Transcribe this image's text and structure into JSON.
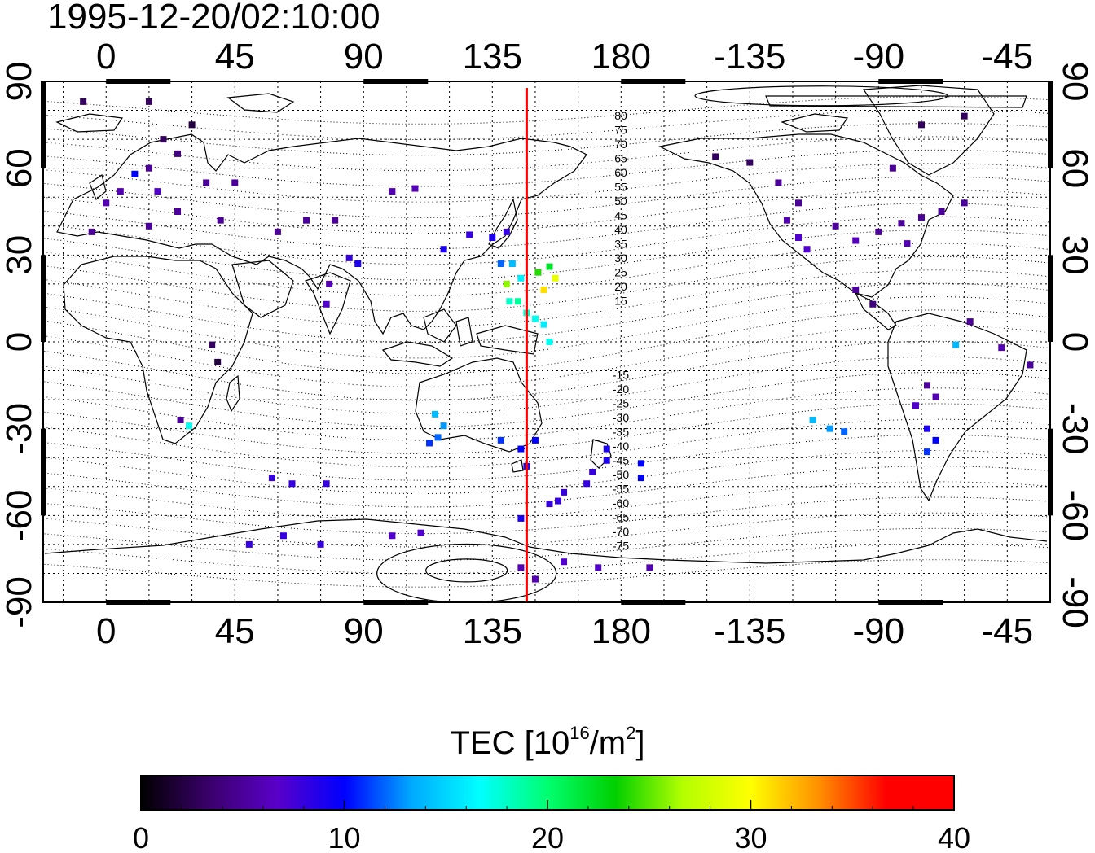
{
  "title": "1995-12-20/02:10:00",
  "map": {
    "lon_ticks_top": [
      "0",
      "45",
      "90",
      "135",
      "180",
      "-135",
      "-90",
      "-45"
    ],
    "lon_ticks_bottom": [
      "0",
      "45",
      "90",
      "135",
      "180",
      "-135",
      "-90",
      "-45"
    ],
    "lat_ticks_left": [
      "90",
      "60",
      "30",
      "0",
      "-30",
      "-60",
      "-90"
    ],
    "lat_ticks_right": [
      "90",
      "60",
      "30",
      "0",
      "-30",
      "-60",
      "-90"
    ],
    "lon_tick_values": [
      0,
      45,
      90,
      135,
      180,
      225,
      270,
      315
    ],
    "lat_tick_values": [
      90,
      60,
      30,
      0,
      -30,
      -60,
      -90
    ],
    "lon_range": [
      -22,
      330
    ],
    "lat_range": [
      -90,
      90
    ],
    "meridian_line_lon": 147,
    "meridian_color": "#ff0000",
    "contour_labels": [
      "80",
      "75",
      "70",
      "65",
      "60",
      "55",
      "50",
      "45",
      "40",
      "35",
      "30",
      "25",
      "20",
      "15",
      "-15",
      "-20",
      "-25",
      "-30",
      "-35",
      "-40",
      "-45",
      "-50",
      "-55",
      "-60",
      "-65",
      "-70",
      "-75"
    ],
    "tec_points": [
      {
        "lon": -8,
        "lat": 83,
        "tec": 3
      },
      {
        "lon": 15,
        "lat": 83,
        "tec": 3
      },
      {
        "lon": 30,
        "lat": 75,
        "tec": 2
      },
      {
        "lon": 20,
        "lat": 70,
        "tec": 3
      },
      {
        "lon": 25,
        "lat": 65,
        "tec": 4
      },
      {
        "lon": 15,
        "lat": 60,
        "tec": 5
      },
      {
        "lon": 10,
        "lat": 58,
        "tec": 10
      },
      {
        "lon": 5,
        "lat": 52,
        "tec": 6
      },
      {
        "lon": 18,
        "lat": 52,
        "tec": 7
      },
      {
        "lon": 0,
        "lat": 48,
        "tec": 6
      },
      {
        "lon": 25,
        "lat": 45,
        "tec": 5
      },
      {
        "lon": -5,
        "lat": 38,
        "tec": 5
      },
      {
        "lon": 15,
        "lat": 40,
        "tec": 5
      },
      {
        "lon": 35,
        "lat": 55,
        "tec": 5
      },
      {
        "lon": 45,
        "lat": 55,
        "tec": 5
      },
      {
        "lon": 40,
        "lat": 42,
        "tec": 5
      },
      {
        "lon": 60,
        "lat": 38,
        "tec": 5
      },
      {
        "lon": 70,
        "lat": 42,
        "tec": 5
      },
      {
        "lon": 80,
        "lat": 42,
        "tec": 5
      },
      {
        "lon": 100,
        "lat": 52,
        "tec": 6
      },
      {
        "lon": 108,
        "lat": 53,
        "tec": 6
      },
      {
        "lon": 85,
        "lat": 29,
        "tec": 8
      },
      {
        "lon": 88,
        "lat": 27,
        "tec": 9
      },
      {
        "lon": 78,
        "lat": 20,
        "tec": 6
      },
      {
        "lon": 77,
        "lat": 13,
        "tec": 7
      },
      {
        "lon": 37,
        "lat": -1,
        "tec": 3
      },
      {
        "lon": 39,
        "lat": -7,
        "tec": 2
      },
      {
        "lon": 26,
        "lat": -27,
        "tec": 5
      },
      {
        "lon": 29,
        "lat": -29,
        "tec": 17
      },
      {
        "lon": 118,
        "lat": 32,
        "tec": 9
      },
      {
        "lon": 127,
        "lat": 37,
        "tec": 8
      },
      {
        "lon": 135,
        "lat": 36,
        "tec": 9
      },
      {
        "lon": 140,
        "lat": 38,
        "tec": 8
      },
      {
        "lon": 138,
        "lat": 27,
        "tec": 12
      },
      {
        "lon": 142,
        "lat": 27,
        "tec": 14
      },
      {
        "lon": 145,
        "lat": 22,
        "tec": 16
      },
      {
        "lon": 141,
        "lat": 14,
        "tec": 18
      },
      {
        "lon": 144,
        "lat": 14,
        "tec": 19
      },
      {
        "lon": 147,
        "lat": 10,
        "tec": 18
      },
      {
        "lon": 150,
        "lat": 8,
        "tec": 17
      },
      {
        "lon": 153,
        "lat": 6,
        "tec": 16
      },
      {
        "lon": 151,
        "lat": 24,
        "tec": 24
      },
      {
        "lon": 155,
        "lat": 26,
        "tec": 22
      },
      {
        "lon": 157,
        "lat": 22,
        "tec": 29
      },
      {
        "lon": 153,
        "lat": 18,
        "tec": 31
      },
      {
        "lon": 140,
        "lat": 20,
        "tec": 26
      },
      {
        "lon": 155,
        "lat": 0,
        "tec": 17
      },
      {
        "lon": 115,
        "lat": -25,
        "tec": 14
      },
      {
        "lon": 118,
        "lat": -29,
        "tec": 13
      },
      {
        "lon": 116,
        "lat": -33,
        "tec": 12
      },
      {
        "lon": 113,
        "lat": -35,
        "tec": 11
      },
      {
        "lon": 138,
        "lat": -34,
        "tec": 11
      },
      {
        "lon": 145,
        "lat": -37,
        "tec": 10
      },
      {
        "lon": 150,
        "lat": -34,
        "tec": 10
      },
      {
        "lon": 147,
        "lat": -43,
        "tec": 9
      },
      {
        "lon": 175,
        "lat": -37,
        "tec": 9
      },
      {
        "lon": 175,
        "lat": -41,
        "tec": 9
      },
      {
        "lon": 170,
        "lat": -45,
        "tec": 8
      },
      {
        "lon": 168,
        "lat": -49,
        "tec": 8
      },
      {
        "lon": 160,
        "lat": -52,
        "tec": 8
      },
      {
        "lon": 158,
        "lat": -55,
        "tec": 8
      },
      {
        "lon": 187,
        "lat": -42,
        "tec": 10
      },
      {
        "lon": 187,
        "lat": -47,
        "tec": 10
      },
      {
        "lon": 65,
        "lat": -49,
        "tec": 8
      },
      {
        "lon": 77,
        "lat": -49,
        "tec": 8
      },
      {
        "lon": 58,
        "lat": -47,
        "tec": 8
      },
      {
        "lon": 50,
        "lat": -70,
        "tec": 8
      },
      {
        "lon": 62,
        "lat": -67,
        "tec": 8
      },
      {
        "lon": 75,
        "lat": -70,
        "tec": 8
      },
      {
        "lon": 100,
        "lat": -67,
        "tec": 7
      },
      {
        "lon": 110,
        "lat": -66,
        "tec": 7
      },
      {
        "lon": 145,
        "lat": -78,
        "tec": 6
      },
      {
        "lon": 150,
        "lat": -82,
        "tec": 6
      },
      {
        "lon": 160,
        "lat": -76,
        "tec": 7
      },
      {
        "lon": 172,
        "lat": -78,
        "tec": 7
      },
      {
        "lon": 190,
        "lat": -78,
        "tec": 6
      },
      {
        "lon": 145,
        "lat": -61,
        "tec": 9
      },
      {
        "lon": 155,
        "lat": -56,
        "tec": 8
      },
      {
        "lon": 213,
        "lat": 64,
        "tec": 3
      },
      {
        "lon": 225,
        "lat": 62,
        "tec": 3
      },
      {
        "lon": 235,
        "lat": 55,
        "tec": 5
      },
      {
        "lon": 242,
        "lat": 48,
        "tec": 5
      },
      {
        "lon": 238,
        "lat": 42,
        "tec": 6
      },
      {
        "lon": 242,
        "lat": 36,
        "tec": 7
      },
      {
        "lon": 245,
        "lat": 32,
        "tec": 7
      },
      {
        "lon": 255,
        "lat": 40,
        "tec": 5
      },
      {
        "lon": 262,
        "lat": 35,
        "tec": 6
      },
      {
        "lon": 270,
        "lat": 38,
        "tec": 5
      },
      {
        "lon": 278,
        "lat": 41,
        "tec": 5
      },
      {
        "lon": 285,
        "lat": 43,
        "tec": 5
      },
      {
        "lon": 280,
        "lat": 34,
        "tec": 6
      },
      {
        "lon": 292,
        "lat": 45,
        "tec": 5
      },
      {
        "lon": 300,
        "lat": 48,
        "tec": 5
      },
      {
        "lon": 275,
        "lat": 60,
        "tec": 5
      },
      {
        "lon": 285,
        "lat": 75,
        "tec": 3
      },
      {
        "lon": 300,
        "lat": 78,
        "tec": 3
      },
      {
        "lon": 262,
        "lat": 18,
        "tec": 5
      },
      {
        "lon": 268,
        "lat": 13,
        "tec": 4
      },
      {
        "lon": 302,
        "lat": 7,
        "tec": 5
      },
      {
        "lon": 297,
        "lat": -1,
        "tec": 14
      },
      {
        "lon": 313,
        "lat": -2,
        "tec": 6
      },
      {
        "lon": 323,
        "lat": -8,
        "tec": 5
      },
      {
        "lon": 287,
        "lat": -15,
        "tec": 5
      },
      {
        "lon": 290,
        "lat": -19,
        "tec": 6
      },
      {
        "lon": 283,
        "lat": -22,
        "tec": 7
      },
      {
        "lon": 287,
        "lat": -30,
        "tec": 9
      },
      {
        "lon": 290,
        "lat": -34,
        "tec": 10
      },
      {
        "lon": 287,
        "lat": -38,
        "tec": 11
      },
      {
        "lon": 247,
        "lat": -27,
        "tec": 14
      },
      {
        "lon": 253,
        "lat": -30,
        "tec": 13
      },
      {
        "lon": 258,
        "lat": -31,
        "tec": 12
      }
    ]
  },
  "colorbar": {
    "title_prefix": "TEC  [10",
    "title_sup1": "16",
    "title_mid": "/m",
    "title_sup2": "2",
    "title_suffix": "]",
    "tick_labels": [
      "0",
      "10",
      "20",
      "30",
      "40"
    ],
    "range": [
      0,
      40
    ],
    "stops": [
      "#000000",
      "#3a006a",
      "#5a00c8",
      "#0000ff",
      "#00aaff",
      "#00ffff",
      "#00ff70",
      "#00d000",
      "#b4ff00",
      "#ffff00",
      "#ff9000",
      "#ff0000",
      "#ff0000"
    ]
  }
}
